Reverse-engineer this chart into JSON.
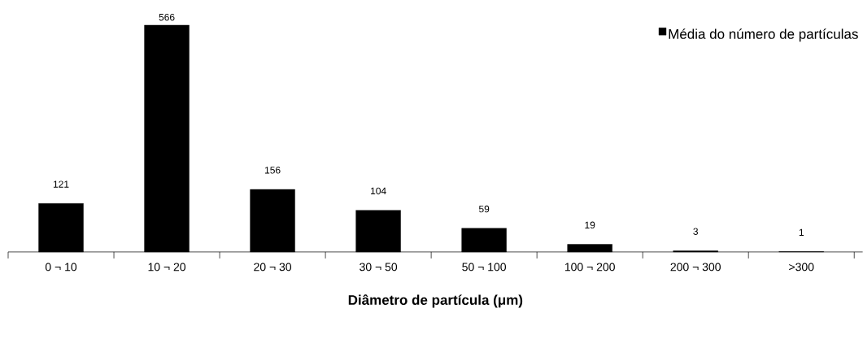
{
  "chart_data": {
    "type": "bar",
    "xlabel": "Diâmetro de partícula (μm)",
    "categories": [
      "0 ¬ 10",
      "10 ¬ 20",
      "20 ¬ 30",
      "30 ¬ 50",
      "50 ¬ 100",
      "100 ¬ 200",
      "200 ¬ 300",
      ">300"
    ],
    "series": [
      {
        "name": "Média do número de partículas",
        "color": "#000000",
        "values": [
          121,
          566,
          156,
          104,
          59,
          19,
          3,
          1
        ]
      }
    ],
    "data_labels": true,
    "legend": "top right"
  }
}
